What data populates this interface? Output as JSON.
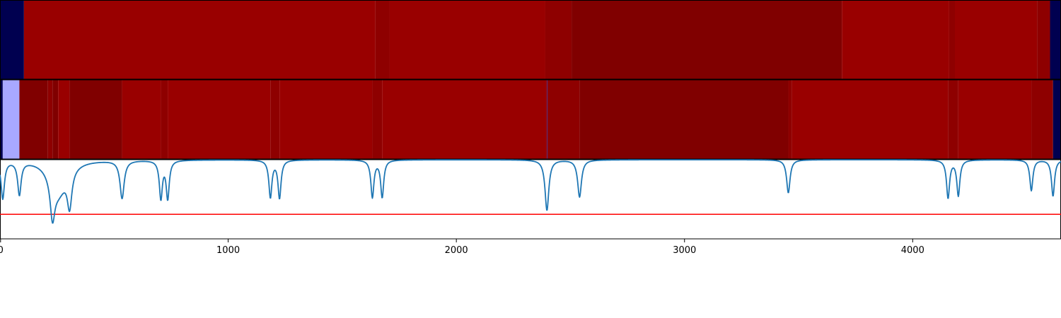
{
  "chart_data": [
    {
      "type": "heatmap",
      "xlim": [
        0,
        4650
      ],
      "segments": [
        {
          "x0": 0,
          "x1": 105,
          "color": "#000050"
        },
        {
          "x0": 105,
          "x1": 1645,
          "color": "#990000"
        },
        {
          "x0": 1645,
          "x1": 1708,
          "color": "#8e0000"
        },
        {
          "x0": 1708,
          "x1": 2390,
          "color": "#990000"
        },
        {
          "x0": 2390,
          "x1": 2505,
          "color": "#8e0000"
        },
        {
          "x0": 2505,
          "x1": 3690,
          "color": "#800000"
        },
        {
          "x0": 3690,
          "x1": 4160,
          "color": "#990000"
        },
        {
          "x0": 4160,
          "x1": 4185,
          "color": "#8e0000"
        },
        {
          "x0": 4185,
          "x1": 4545,
          "color": "#990000"
        },
        {
          "x0": 4545,
          "x1": 4602,
          "color": "#8e0000"
        },
        {
          "x0": 4602,
          "x1": 4650,
          "color": "#000050"
        }
      ]
    },
    {
      "type": "heatmap",
      "xlim": [
        0,
        4650
      ],
      "segments": [
        {
          "x0": 0,
          "x1": 12,
          "color": "#000050"
        },
        {
          "x0": 12,
          "x1": 85,
          "color": "#a8a8ff"
        },
        {
          "x0": 85,
          "x1": 210,
          "color": "#800000"
        },
        {
          "x0": 210,
          "x1": 230,
          "color": "#8e0000"
        },
        {
          "x0": 230,
          "x1": 255,
          "color": "#800000"
        },
        {
          "x0": 255,
          "x1": 305,
          "color": "#990000"
        },
        {
          "x0": 305,
          "x1": 535,
          "color": "#800000"
        },
        {
          "x0": 535,
          "x1": 705,
          "color": "#990000"
        },
        {
          "x0": 705,
          "x1": 735,
          "color": "#8e0000"
        },
        {
          "x0": 735,
          "x1": 1185,
          "color": "#990000"
        },
        {
          "x0": 1185,
          "x1": 1225,
          "color": "#8e0000"
        },
        {
          "x0": 1225,
          "x1": 1632,
          "color": "#990000"
        },
        {
          "x0": 1632,
          "x1": 1675,
          "color": "#8e0000"
        },
        {
          "x0": 1675,
          "x1": 2397,
          "color": "#990000"
        },
        {
          "x0": 2397,
          "x1": 2399,
          "color": "#2020a0"
        },
        {
          "x0": 2399,
          "x1": 2540,
          "color": "#8e0000"
        },
        {
          "x0": 2540,
          "x1": 3455,
          "color": "#800000"
        },
        {
          "x0": 3455,
          "x1": 3470,
          "color": "#8e0000"
        },
        {
          "x0": 3470,
          "x1": 4155,
          "color": "#990000"
        },
        {
          "x0": 4155,
          "x1": 4200,
          "color": "#8e0000"
        },
        {
          "x0": 4200,
          "x1": 4520,
          "color": "#990000"
        },
        {
          "x0": 4520,
          "x1": 4615,
          "color": "#8e0000"
        },
        {
          "x0": 4615,
          "x1": 4650,
          "color": "#000050"
        }
      ]
    },
    {
      "type": "line",
      "xlim": [
        0,
        4650
      ],
      "ylim": [
        0,
        1
      ],
      "xticks": [
        0,
        1000,
        2000,
        3000,
        4000
      ],
      "xtick_labels": [
        "0",
        "1000",
        "2000",
        "3000",
        "4000"
      ],
      "grid": false,
      "baseline_y": 1.0,
      "line_color": "#1f77b4",
      "dips": [
        {
          "x": 12,
          "depth": 0.48,
          "width": 9
        },
        {
          "x": 85,
          "depth": 0.42,
          "width": 9
        },
        {
          "x": 230,
          "depth": 0.48,
          "width": 12
        },
        {
          "x": 255,
          "depth": 0.4,
          "width": 45
        },
        {
          "x": 305,
          "depth": 0.46,
          "width": 12
        },
        {
          "x": 535,
          "depth": 0.48,
          "width": 11
        },
        {
          "x": 705,
          "depth": 0.48,
          "width": 8
        },
        {
          "x": 735,
          "depth": 0.48,
          "width": 8
        },
        {
          "x": 1185,
          "depth": 0.47,
          "width": 8
        },
        {
          "x": 1225,
          "depth": 0.48,
          "width": 8
        },
        {
          "x": 1632,
          "depth": 0.47,
          "width": 8
        },
        {
          "x": 1675,
          "depth": 0.47,
          "width": 8
        },
        {
          "x": 2397,
          "depth": 0.64,
          "width": 10
        },
        {
          "x": 2540,
          "depth": 0.47,
          "width": 10
        },
        {
          "x": 3455,
          "depth": 0.42,
          "width": 9
        },
        {
          "x": 4155,
          "depth": 0.48,
          "width": 8
        },
        {
          "x": 4200,
          "depth": 0.45,
          "width": 8
        },
        {
          "x": 4520,
          "depth": 0.39,
          "width": 8
        },
        {
          "x": 4615,
          "depth": 0.46,
          "width": 8
        }
      ],
      "threshold": {
        "y": 0.31,
        "color": "#ff0000"
      }
    }
  ]
}
